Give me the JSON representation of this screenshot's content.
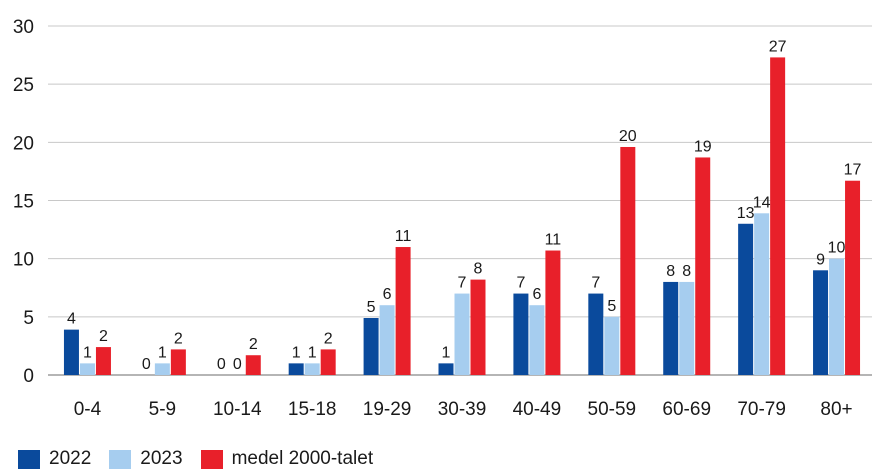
{
  "chart_data": {
    "type": "bar",
    "categories": [
      "0-4",
      "5-9",
      "10-14",
      "15-18",
      "19-29",
      "30-39",
      "40-49",
      "50-59",
      "60-69",
      "70-79",
      "80+"
    ],
    "series": [
      {
        "name": "2022",
        "color": "#0a4a9c",
        "values": [
          3.9,
          0,
          0,
          1,
          4.9,
          1,
          7,
          7,
          8,
          13,
          9
        ],
        "labels": [
          "4",
          "0",
          "0",
          "1",
          "5",
          "1",
          "7",
          "7",
          "8",
          "13",
          "9"
        ]
      },
      {
        "name": "2023",
        "color": "#a6cdef",
        "values": [
          1,
          1,
          0,
          1,
          6,
          7,
          6,
          5,
          8,
          13.9,
          10
        ],
        "labels": [
          "1",
          "1",
          "0",
          "1",
          "6",
          "7",
          "6",
          "5",
          "8",
          "14",
          "10"
        ]
      },
      {
        "name": "medel 2000-talet",
        "color": "#e8202a",
        "values": [
          2.4,
          2.2,
          1.7,
          2.2,
          11,
          8.2,
          10.7,
          19.6,
          18.7,
          27.3,
          16.7
        ],
        "labels": [
          "2",
          "2",
          "2",
          "2",
          "11",
          "8",
          "11",
          "20",
          "19",
          "27",
          "17"
        ]
      }
    ],
    "yticks": [
      "0",
      "5",
      "10",
      "15",
      "20",
      "25",
      "30"
    ],
    "ylim": [
      0,
      30
    ],
    "grid": true,
    "legend": "bottom-left"
  }
}
